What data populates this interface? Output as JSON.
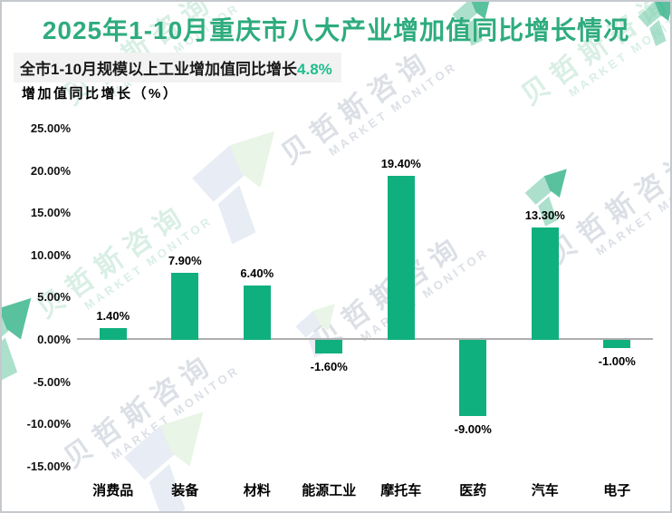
{
  "page": {
    "title": "2025年1-10月重庆市八大产业增加值同比增长情况",
    "subtitle_prefix": "全市1-10月规模以上工业增加值同比增长",
    "subtitle_highlight": "4.8%",
    "axis_title": "增加值同比增长（%）"
  },
  "watermark": {
    "text_cn": "贝哲斯咨询",
    "text_en": "MARKET MONITOR"
  },
  "colors": {
    "bar": "#10B07E",
    "title": "#2EAC7E",
    "highlight": "#1FBE8E",
    "axis_line": "#AEAEAE"
  },
  "chart_data": {
    "type": "bar",
    "title": "增加值同比增长（%）",
    "categories": [
      "消费品",
      "装备",
      "材料",
      "能源工业",
      "摩托车",
      "医药",
      "汽车",
      "电子"
    ],
    "values": [
      1.4,
      7.9,
      6.4,
      -1.6,
      19.4,
      -9.0,
      13.3,
      -1.0
    ],
    "labels": [
      "1.40%",
      "7.90%",
      "6.40%",
      "-1.60%",
      "19.40%",
      "-9.00%",
      "13.30%",
      "-1.00%"
    ],
    "xlabel": "",
    "ylabel": "增加值同比增长（%）",
    "ylim": [
      -15,
      25
    ],
    "ytick_values": [
      25,
      20,
      15,
      10,
      5,
      0,
      -5,
      -10,
      -15
    ],
    "yticks": [
      "25.00%",
      "20.00%",
      "15.00%",
      "10.00%",
      "5.00%",
      "0.00%",
      "-5.00%",
      "-10.00%",
      "-15.00%"
    ],
    "grid": false,
    "legend": false,
    "bar_color": "#10B07E"
  }
}
